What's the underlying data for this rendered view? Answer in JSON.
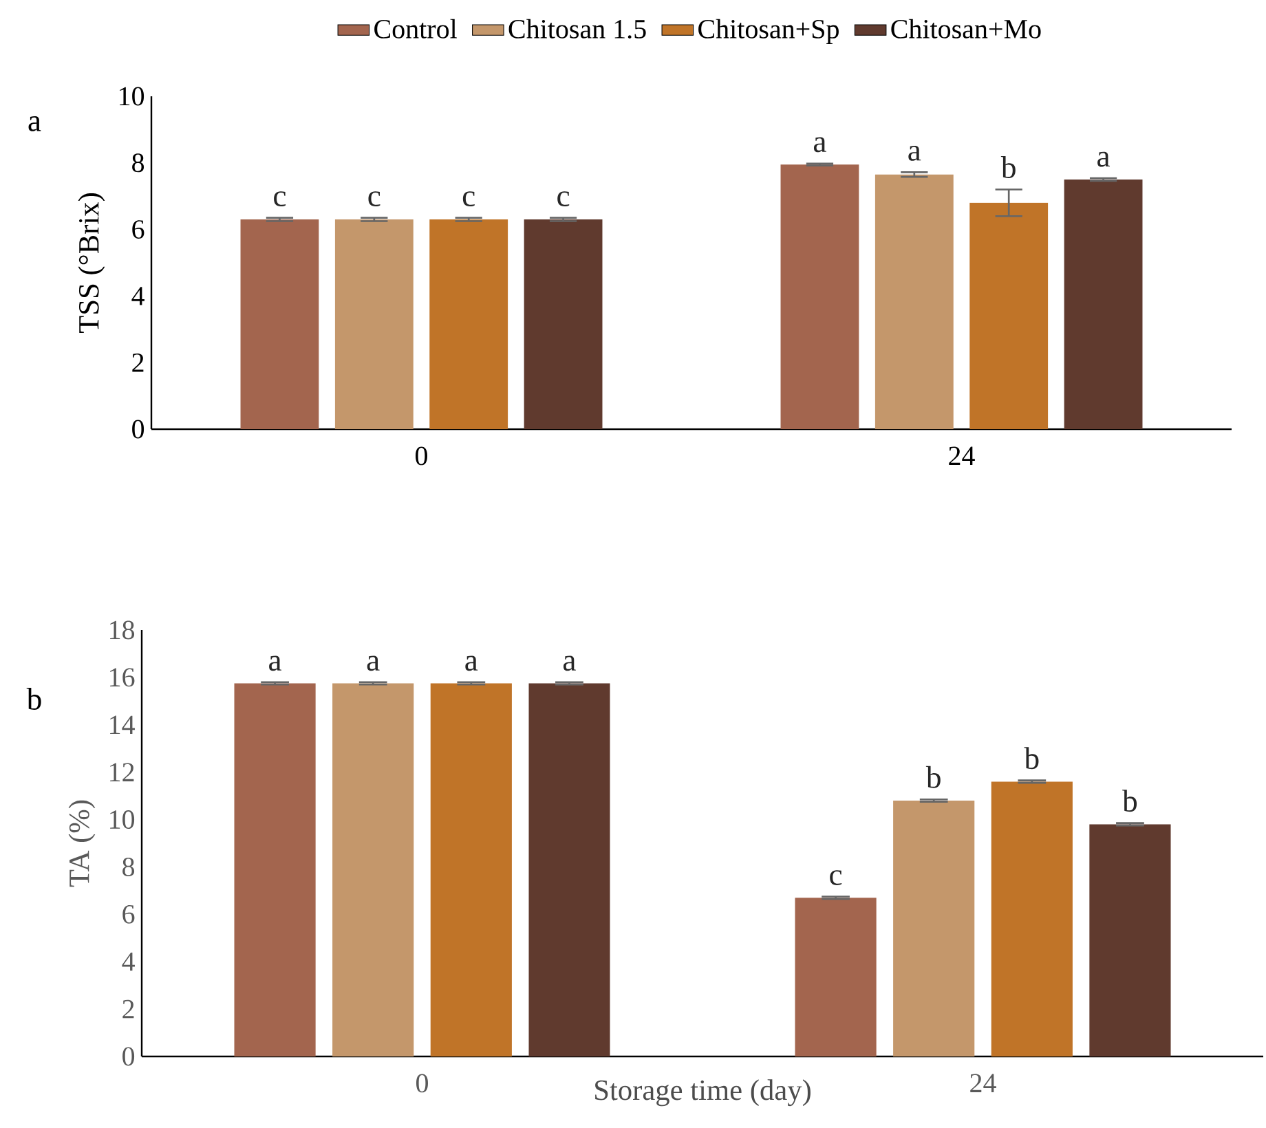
{
  "chart_data": [
    {
      "type": "bar",
      "ylabel": "TSS (°Brix)",
      "categories": [
        "0",
        "24"
      ],
      "ylim": [
        0,
        10
      ],
      "yticks": [
        0,
        2,
        4,
        6,
        8,
        10
      ],
      "grid": false,
      "legend": "top",
      "annotations": [
        "a"
      ],
      "series": [
        {
          "name": "Control",
          "color": "#a3654e",
          "values": [
            6.3,
            7.95
          ],
          "errors": [
            0.05,
            0.03
          ],
          "value_labels": [
            "c",
            "a"
          ]
        },
        {
          "name": "Chitosan 1.5",
          "color": "#c4976b",
          "values": [
            6.3,
            7.65
          ],
          "errors": [
            0.05,
            0.07
          ],
          "value_labels": [
            "c",
            "a"
          ]
        },
        {
          "name": "Chitosan+Sp",
          "color": "#c07428",
          "values": [
            6.3,
            6.8
          ],
          "errors": [
            0.05,
            0.4
          ],
          "value_labels": [
            "c",
            "b"
          ]
        },
        {
          "name": "Chitosan+Mo",
          "color": "#603a2e",
          "values": [
            6.3,
            7.5
          ],
          "errors": [
            0.05,
            0.04
          ],
          "value_labels": [
            "c",
            "a"
          ]
        }
      ]
    },
    {
      "type": "bar",
      "ylabel": "TA (%)",
      "xlabel": "Storage time (day)",
      "categories": [
        "0",
        "24"
      ],
      "ylim": [
        0,
        18
      ],
      "yticks": [
        0,
        2,
        4,
        6,
        8,
        10,
        12,
        14,
        16,
        18
      ],
      "grid": false,
      "legend": false,
      "annotations": [
        "b"
      ],
      "series": [
        {
          "color": "#a3654e",
          "values": [
            15.75,
            6.7
          ],
          "errors": [
            0.05,
            0.05
          ],
          "value_labels": [
            "a",
            "c"
          ]
        },
        {
          "color": "#c4976b",
          "values": [
            15.75,
            10.8
          ],
          "errors": [
            0.05,
            0.05
          ],
          "value_labels": [
            "a",
            "b"
          ]
        },
        {
          "color": "#c07428",
          "values": [
            15.75,
            11.6
          ],
          "errors": [
            0.05,
            0.05
          ],
          "value_labels": [
            "a",
            "b"
          ]
        },
        {
          "color": "#603a2e",
          "values": [
            15.75,
            9.8
          ],
          "errors": [
            0.05,
            0.05
          ],
          "value_labels": [
            "a",
            "b"
          ]
        }
      ]
    }
  ]
}
